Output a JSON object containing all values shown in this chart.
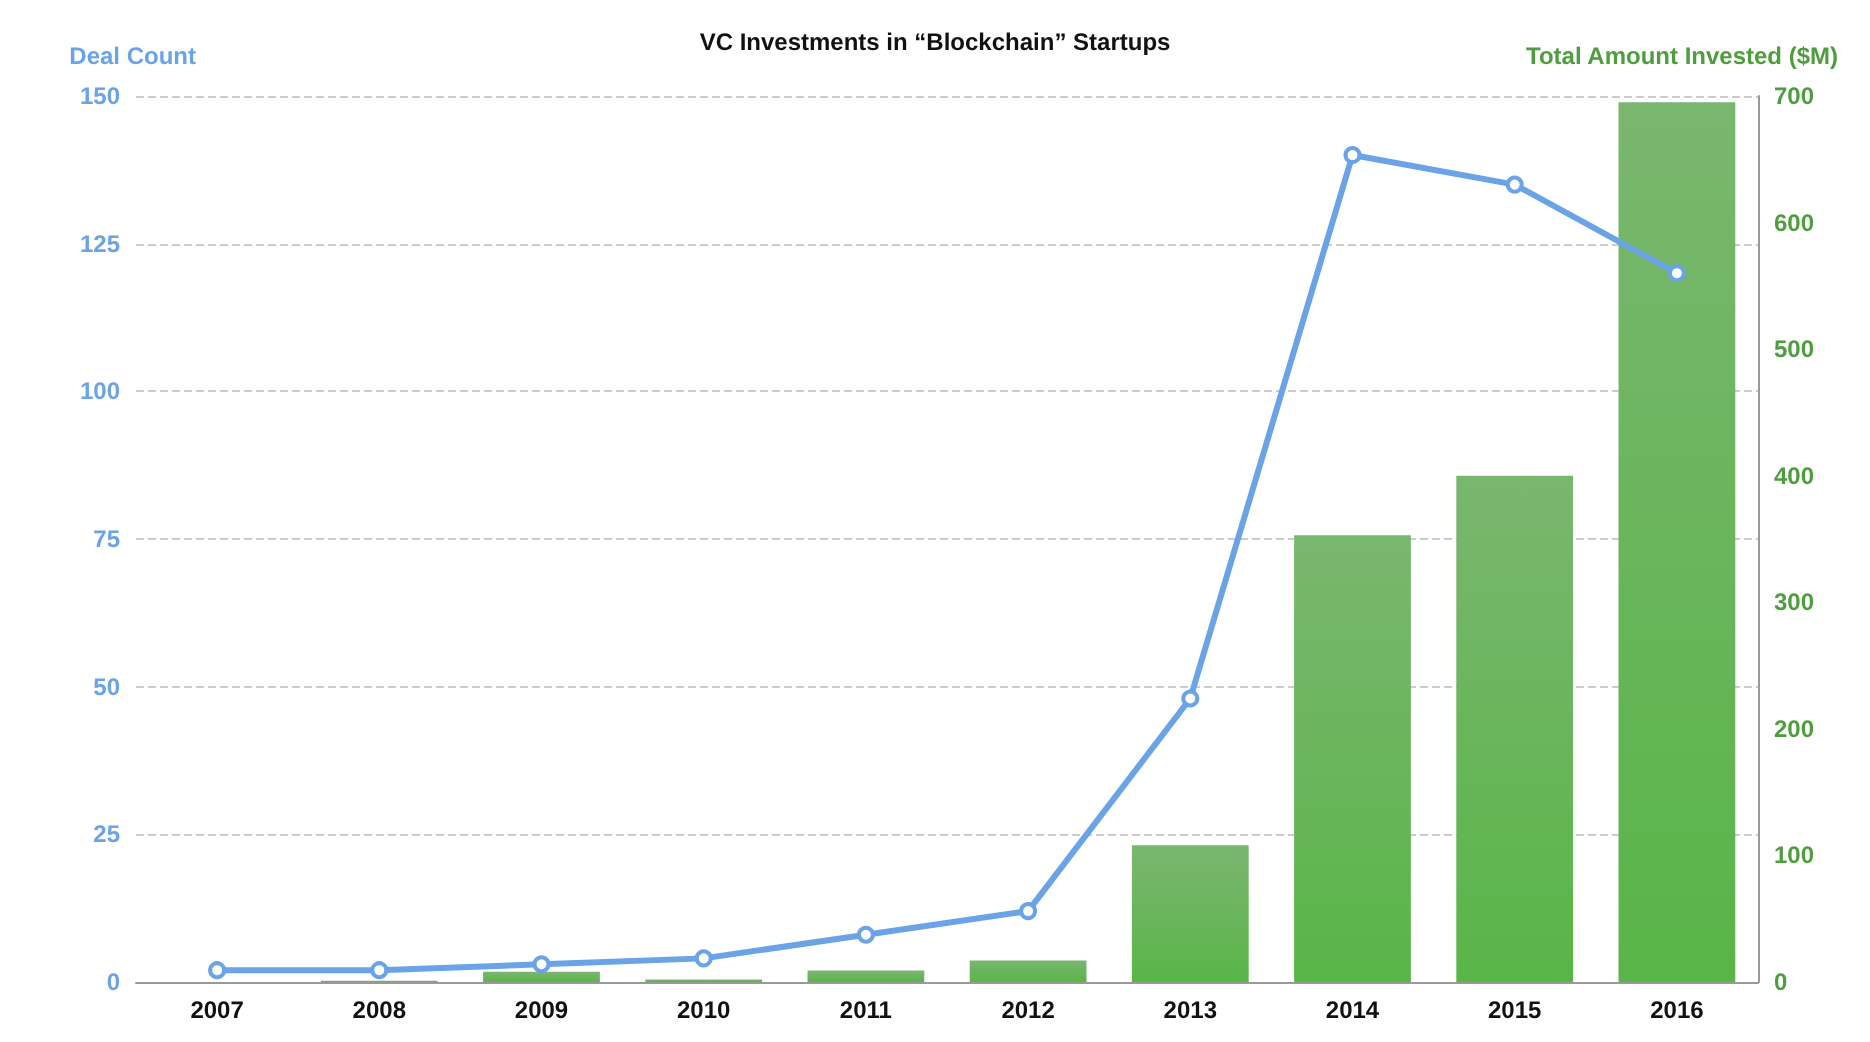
{
  "chart_data": {
    "type": "bar",
    "title": "VC Investments in “Blockchain” Startups",
    "categories": [
      "2007",
      "2008",
      "2009",
      "2010",
      "2011",
      "2012",
      "2013",
      "2014",
      "2015",
      "2016"
    ],
    "series": [
      {
        "axis": "y2",
        "color": "#4e9e3f",
        "values": [
          0,
          1,
          8,
          2,
          9,
          17,
          108,
          353,
          400,
          695
        ]
      },
      {
        "type": "line",
        "axis": "y",
        "color": "#6aa3e6",
        "marker": "circle",
        "values": [
          2,
          2,
          3,
          4,
          8,
          12,
          48,
          140,
          135,
          120
        ]
      }
    ],
    "ylabel": "Deal Count",
    "y2label": "Total Amount Invested ($M)",
    "ylim": [
      0,
      150
    ],
    "yticks": [
      0,
      25,
      50,
      75,
      100,
      125,
      150
    ],
    "y2lim": [
      0,
      700
    ],
    "y2ticks": [
      0,
      100,
      200,
      300,
      400,
      500,
      600,
      700
    ],
    "grid": "y"
  }
}
